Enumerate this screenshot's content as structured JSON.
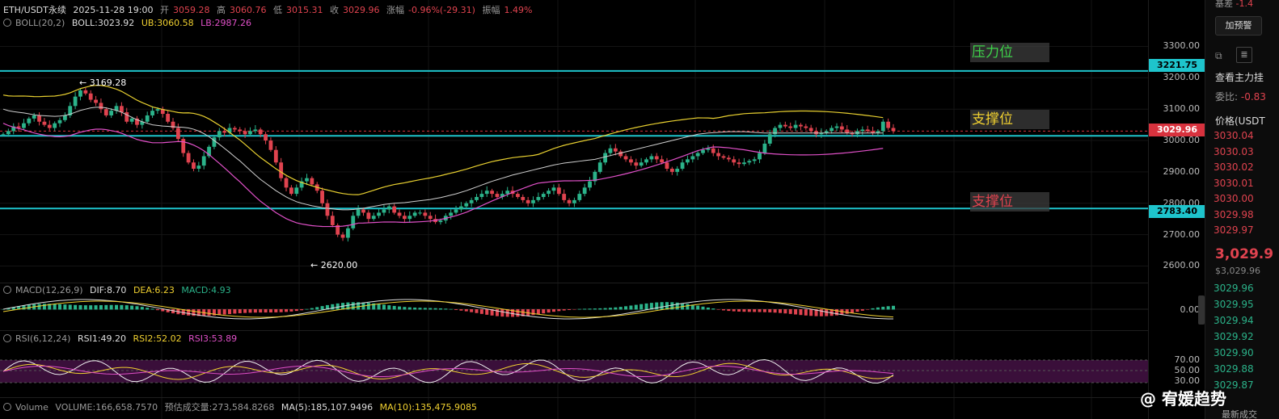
{
  "header": {
    "symbol": "ETH/USDT永续",
    "datetime": "2025-11-28 19:00",
    "open_label": "开",
    "open": "3059.28",
    "high_label": "高",
    "high": "3060.76",
    "low_label": "低",
    "low": "3015.31",
    "close_label": "收",
    "close": "3029.96",
    "change_label": "涨幅",
    "change": "-0.96%(-29.31)",
    "amp_label": "振幅",
    "amp": "1.49%"
  },
  "boll": {
    "name": "BOLL(20,2)",
    "boll": "BOLL:3023.92",
    "ub": "UB:3060.58",
    "lb": "LB:2987.26"
  },
  "macd": {
    "name": "MACD(12,26,9)",
    "dif": "DIF:8.70",
    "dea": "DEA:6.23",
    "macd": "MACD:4.93"
  },
  "rsi": {
    "name": "RSI(6,12,24)",
    "rsi1": "RSI1:49.20",
    "rsi2": "RSI2:52.02",
    "rsi3": "RSI3:53.89"
  },
  "volume": {
    "name": "Volume",
    "vol": "VOLUME:166,658.7570",
    "est": "预估成交量:273,584.8268",
    "ma5": "MA(5):185,107.9496",
    "ma10": "MA(10):135,475.9085"
  },
  "price_axis": {
    "ticks": [
      "3300.00",
      "3200.00",
      "3100.00",
      "3000.00",
      "2900.00",
      "2800.00",
      "2700.00",
      "2600.00"
    ],
    "tick_values": [
      3300,
      3200,
      3100,
      3000,
      2900,
      2800,
      2700,
      2600
    ],
    "tag_resistance": "3221.75",
    "tag_current": "3029.96",
    "tag_support": "2783.40",
    "macd_zero": "0.00",
    "rsi_ticks": [
      "70.00",
      "50.00",
      "30.00"
    ]
  },
  "levels": {
    "resistance_label": "压力位",
    "support1_label": "支撑位",
    "support2_label": "支撑位",
    "resistance": 3221.75,
    "support1": 3015,
    "support2": 2783.4
  },
  "annotations": {
    "high_mark": "3169.28",
    "low_mark": "2620.00"
  },
  "orderbook": {
    "alert_button": "加预警",
    "top_label": "基差",
    "top_val": "-1.4",
    "main_force": "查看主力挂",
    "ratio_label": "委比:",
    "ratio_val": "-0.83",
    "price_header": "价格(USDT",
    "asks": [
      "3030.04",
      "3030.03",
      "3030.02",
      "3030.01",
      "3030.00",
      "3029.98",
      "3029.97"
    ],
    "last_price": "3,029.9",
    "last_usd": "$3,029.96",
    "bids": [
      "3029.96",
      "3029.95",
      "3029.94",
      "3029.92",
      "3029.90",
      "3029.88",
      "3029.87"
    ],
    "footer": "最新成交"
  },
  "watermark": "@ 宥媛趋势",
  "chart_data": {
    "type": "candlestick",
    "price_range": [
      2560,
      3345
    ],
    "candles_close": [
      3020,
      3030,
      3045,
      3040,
      3055,
      3070,
      3080,
      3060,
      3050,
      3040,
      3055,
      3065,
      3080,
      3110,
      3140,
      3160,
      3150,
      3130,
      3120,
      3100,
      3080,
      3095,
      3110,
      3090,
      3060,
      3070,
      3050,
      3060,
      3080,
      3095,
      3100,
      3085,
      3060,
      3040,
      3005,
      2960,
      2930,
      2910,
      2920,
      2950,
      2980,
      3010,
      3030,
      3025,
      3040,
      3035,
      3030,
      3020,
      3030,
      3035,
      3020,
      3000,
      2970,
      2930,
      2880,
      2850,
      2830,
      2850,
      2870,
      2880,
      2860,
      2840,
      2800,
      2760,
      2730,
      2700,
      2690,
      2720,
      2760,
      2780,
      2770,
      2750,
      2760,
      2770,
      2780,
      2790,
      2770,
      2760,
      2750,
      2760,
      2770,
      2770,
      2760,
      2750,
      2740,
      2745,
      2760,
      2770,
      2780,
      2790,
      2800,
      2810,
      2820,
      2830,
      2840,
      2830,
      2820,
      2830,
      2840,
      2830,
      2820,
      2810,
      2800,
      2810,
      2820,
      2830,
      2840,
      2850,
      2830,
      2810,
      2800,
      2810,
      2830,
      2850,
      2870,
      2900,
      2930,
      2960,
      2975,
      2965,
      2950,
      2940,
      2930,
      2920,
      2930,
      2940,
      2950,
      2940,
      2930,
      2910,
      2900,
      2910,
      2930,
      2940,
      2950,
      2960,
      2970,
      2975,
      2960,
      2950,
      2945,
      2940,
      2930,
      2925,
      2930,
      2935,
      2940,
      2960,
      2990,
      3020,
      3040,
      3050,
      3045,
      3040,
      3050,
      3045,
      3040,
      3030,
      3020,
      3025,
      3030,
      3040,
      3045,
      3035,
      3025,
      3020,
      3030,
      3035,
      3030,
      3025,
      3030,
      3060,
      3040,
      3030
    ],
    "boll_mid": [
      3100,
      3095,
      3092,
      3090,
      3088,
      3085,
      3082,
      3080,
      3079,
      3078,
      3077,
      3078,
      3080,
      3084,
      3090,
      3096,
      3100,
      3104,
      3106,
      3106,
      3104,
      3100,
      3096,
      3090,
      3082,
      3074,
      3066,
      3060,
      3055,
      3050,
      3048,
      3046,
      3045,
      3044,
      3043,
      3042,
      3040,
      3036,
      3030,
      3022,
      3012,
      3000,
      2988,
      2975,
      2962,
      2948,
      2935,
      2920,
      2905,
      2890,
      2876,
      2864,
      2852,
      2840,
      2830,
      2820,
      2812,
      2805,
      2800,
      2796,
      2792,
      2789,
      2786,
      2784,
      2782,
      2780,
      2779,
      2779,
      2780,
      2782,
      2784,
      2787,
      2790,
      2793,
      2796,
      2798,
      2800,
      2801,
      2802,
      2804,
      2806,
      2808,
      2810,
      2812,
      2815,
      2818,
      2822,
      2826,
      2830,
      2835,
      2840,
      2846,
      2852,
      2858,
      2864,
      2870,
      2875,
      2880,
      2885,
      2890,
      2894,
      2898,
      2902,
      2906,
      2910,
      2914,
      2918,
      2922,
      2925,
      2928,
      2930,
      2932,
      2934,
      2936,
      2938,
      2940,
      2944,
      2948,
      2952,
      2956,
      2960,
      2964,
      2968,
      2972,
      2976,
      2980,
      2984,
      2988,
      2992,
      2996,
      3000,
      3004,
      3008,
      3012,
      3016,
      3020,
      3022,
      3024,
      3025,
      3026,
      3027,
      3028,
      3028,
      3028,
      3028,
      3027,
      3026,
      3025,
      3024,
      3024,
      3024,
      3024,
      3024,
      3024,
      3024,
      3024,
      3024,
      3024,
      3024,
      3024,
      3024,
      3024,
      3024,
      3024,
      3024,
      3024,
      3024,
      3024,
      3024,
      3024,
      3024,
      3024
    ]
  }
}
